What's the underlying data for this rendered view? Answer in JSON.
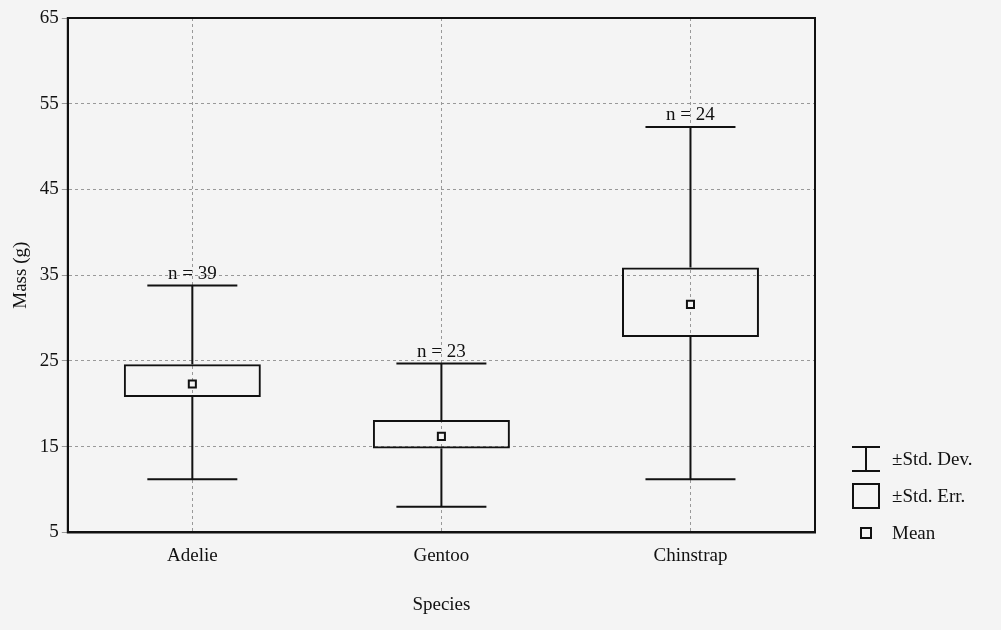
{
  "chart_data": {
    "type": "box",
    "xlabel": "Species",
    "ylabel": "Mass (g)",
    "categories": [
      "Adelie",
      "Gentoo",
      "Chinstrap"
    ],
    "boxes": [
      {
        "low": 11.2,
        "q1": 20.8,
        "q3": 24.6,
        "high": 33.8,
        "mean": 22.3
      },
      {
        "low": 8.0,
        "q1": 14.8,
        "q3": 18.1,
        "high": 24.7,
        "mean": 16.2
      },
      {
        "low": 11.2,
        "q1": 27.8,
        "q3": 35.9,
        "high": 52.3,
        "mean": 31.6
      }
    ],
    "ylim": [
      5,
      65
    ],
    "yticks": [
      5,
      15,
      25,
      35,
      45,
      55,
      65
    ],
    "grid": true,
    "marker": "square",
    "annotations": [
      {
        "text": "n = 39",
        "x": "Adelie",
        "y": 33.8
      },
      {
        "text": "n = 23",
        "x": "Gentoo",
        "y": 24.7
      },
      {
        "text": "n = 24",
        "x": "Chinstrap",
        "y": 52.3
      },
      "±Std. Dev.",
      "±Std. Err.",
      "Mean"
    ]
  }
}
